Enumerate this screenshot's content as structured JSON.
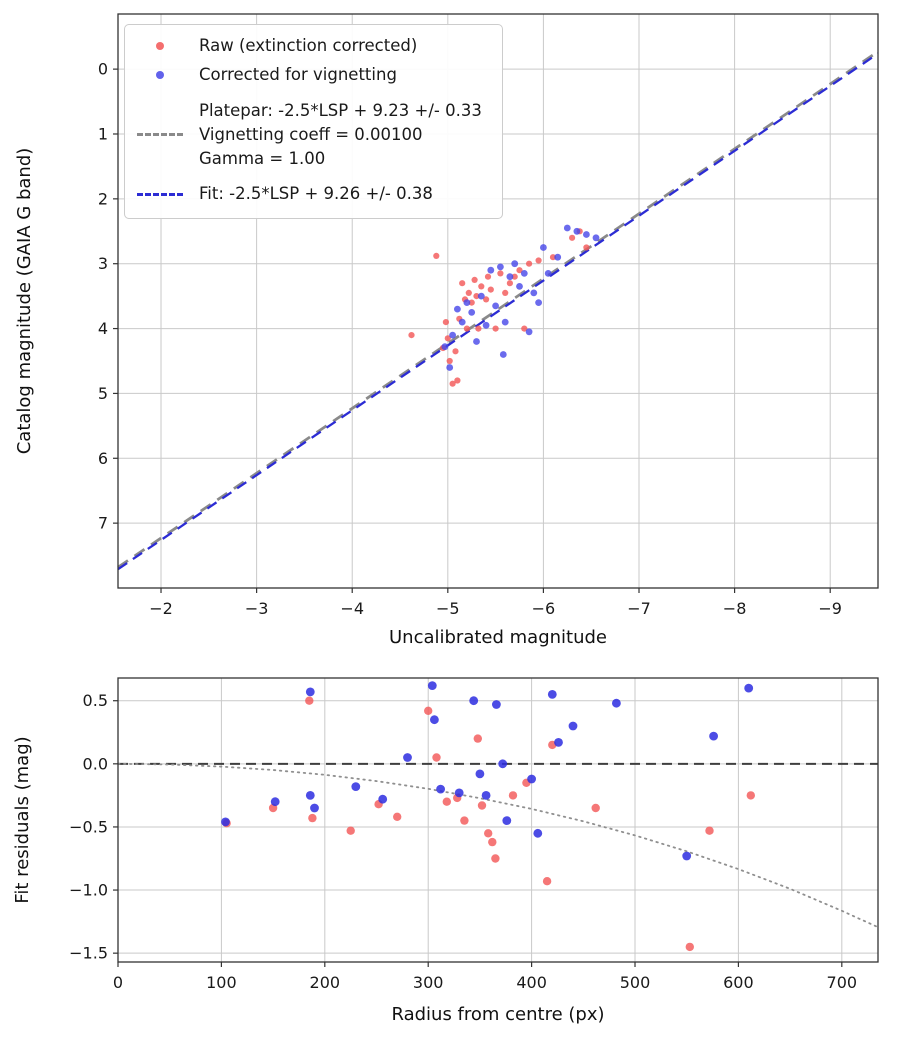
{
  "figure": {
    "background": "#ffffff"
  },
  "chart_data": [
    {
      "type": "scatter",
      "title": "",
      "xlabel": "Uncalibrated magnitude",
      "ylabel": "Catalog magnitude (GAIA G band)",
      "xlim": [
        -1.55,
        -9.5
      ],
      "ylim_top_bottom": [
        -0.85,
        8.0
      ],
      "grid": true,
      "colors": {
        "grid": "#c9c9c9",
        "spine": "#333333",
        "tick_text": "#1a1a1a"
      },
      "xticks": [
        {
          "v": -2,
          "label": "−2"
        },
        {
          "v": -3,
          "label": "−3"
        },
        {
          "v": -4,
          "label": "−4"
        },
        {
          "v": -5,
          "label": "−5"
        },
        {
          "v": -6,
          "label": "−6"
        },
        {
          "v": -7,
          "label": "−7"
        },
        {
          "v": -8,
          "label": "−8"
        },
        {
          "v": -9,
          "label": "−9"
        }
      ],
      "yticks": [
        {
          "v": 0,
          "label": "0"
        },
        {
          "v": 1,
          "label": "1"
        },
        {
          "v": 2,
          "label": "2"
        },
        {
          "v": 3,
          "label": "3"
        },
        {
          "v": 4,
          "label": "4"
        },
        {
          "v": 5,
          "label": "5"
        },
        {
          "v": 6,
          "label": "6"
        },
        {
          "v": 7,
          "label": "7"
        }
      ],
      "series": [
        {
          "name": "Raw (extinction corrected)",
          "color": "#f25555",
          "opacity": 0.8,
          "marker_px": 3.1,
          "points": [
            [
              -4.62,
              4.1
            ],
            [
              -4.88,
              2.88
            ],
            [
              -4.95,
              4.3
            ],
            [
              -4.98,
              3.9
            ],
            [
              -5.0,
              4.15
            ],
            [
              -5.02,
              4.5
            ],
            [
              -5.05,
              4.85
            ],
            [
              -5.08,
              4.35
            ],
            [
              -5.1,
              4.8
            ],
            [
              -5.12,
              3.85
            ],
            [
              -5.15,
              3.3
            ],
            [
              -5.18,
              3.55
            ],
            [
              -5.2,
              4.0
            ],
            [
              -5.22,
              3.45
            ],
            [
              -5.25,
              3.6
            ],
            [
              -5.28,
              3.25
            ],
            [
              -5.3,
              3.5
            ],
            [
              -5.32,
              4.0
            ],
            [
              -5.35,
              3.35
            ],
            [
              -5.4,
              3.55
            ],
            [
              -5.42,
              3.2
            ],
            [
              -5.45,
              3.4
            ],
            [
              -5.5,
              4.0
            ],
            [
              -5.55,
              3.15
            ],
            [
              -5.6,
              3.45
            ],
            [
              -5.65,
              3.3
            ],
            [
              -5.7,
              3.2
            ],
            [
              -5.75,
              3.1
            ],
            [
              -5.8,
              4.0
            ],
            [
              -5.85,
              3.0
            ],
            [
              -5.95,
              2.95
            ],
            [
              -6.1,
              2.9
            ],
            [
              -6.3,
              2.6
            ],
            [
              -6.38,
              2.5
            ],
            [
              -6.45,
              2.75
            ]
          ]
        },
        {
          "name": "Corrected for vignetting",
          "color": "#4646e8",
          "opacity": 0.8,
          "marker_px": 3.4,
          "points": [
            [
              -4.97,
              4.28
            ],
            [
              -5.02,
              4.6
            ],
            [
              -5.05,
              4.1
            ],
            [
              -5.1,
              3.7
            ],
            [
              -5.15,
              3.9
            ],
            [
              -5.2,
              3.6
            ],
            [
              -5.25,
              3.75
            ],
            [
              -5.3,
              4.2
            ],
            [
              -5.35,
              3.5
            ],
            [
              -5.4,
              3.95
            ],
            [
              -5.45,
              3.1
            ],
            [
              -5.5,
              3.65
            ],
            [
              -5.55,
              3.05
            ],
            [
              -5.58,
              4.4
            ],
            [
              -5.6,
              3.9
            ],
            [
              -5.65,
              3.2
            ],
            [
              -5.7,
              3.0
            ],
            [
              -5.75,
              3.35
            ],
            [
              -5.8,
              3.15
            ],
            [
              -5.85,
              4.05
            ],
            [
              -5.9,
              3.45
            ],
            [
              -5.95,
              3.6
            ],
            [
              -6.0,
              2.75
            ],
            [
              -6.05,
              3.15
            ],
            [
              -6.15,
              2.9
            ],
            [
              -6.25,
              2.45
            ],
            [
              -6.35,
              2.5
            ],
            [
              -6.45,
              2.55
            ],
            [
              -6.55,
              2.6
            ]
          ]
        }
      ],
      "fit_lines": [
        {
          "name": "platepar-line",
          "color": "#8a8a8a",
          "width": 2.8,
          "dash": "12,8",
          "slope": 1,
          "intercept": 9.23,
          "label_lines": [
            "Platepar: -2.5*LSP + 9.23 +/- 0.33",
            "Vignetting coeff = 0.00100",
            "Gamma = 1.00"
          ]
        },
        {
          "name": "fit-line",
          "color": "#2c2cd4",
          "width": 2.3,
          "dash": "11,7",
          "slope": 1,
          "intercept": 9.26,
          "label": "Fit: -2.5*LSP + 9.26 +/- 0.38"
        }
      ]
    },
    {
      "type": "scatter",
      "title": "",
      "xlabel": "Radius from centre (px)",
      "ylabel": "Fit residuals (mag)",
      "xlim": [
        0,
        735
      ],
      "ylim_top_bottom": [
        0.68,
        -1.57
      ],
      "grid": true,
      "colors": {
        "grid": "#c9c9c9",
        "spine": "#333333",
        "tick_text": "#1a1a1a"
      },
      "xticks": [
        {
          "v": 0,
          "label": "0"
        },
        {
          "v": 100,
          "label": "100"
        },
        {
          "v": 200,
          "label": "200"
        },
        {
          "v": 300,
          "label": "300"
        },
        {
          "v": 400,
          "label": "400"
        },
        {
          "v": 500,
          "label": "500"
        },
        {
          "v": 600,
          "label": "600"
        },
        {
          "v": 700,
          "label": "700"
        }
      ],
      "yticks": [
        {
          "v": 0.5,
          "label": "0.5"
        },
        {
          "v": 0.0,
          "label": "0.0"
        },
        {
          "v": -0.5,
          "label": "−0.5"
        },
        {
          "v": -1.0,
          "label": "−1.0"
        },
        {
          "v": -1.5,
          "label": "−1.5"
        }
      ],
      "zero_line": {
        "y": 0.0,
        "color": "#3f3f3f",
        "dash": "10,6",
        "width": 2
      },
      "model_curve": {
        "name": "vignetting-model-curve",
        "color": "#8f8f8f",
        "width": 1.8,
        "dash": "1.5,4.5",
        "points": [
          [
            0,
            0
          ],
          [
            50,
            -0.005
          ],
          [
            100,
            -0.022
          ],
          [
            150,
            -0.049
          ],
          [
            200,
            -0.087
          ],
          [
            250,
            -0.137
          ],
          [
            300,
            -0.198
          ],
          [
            350,
            -0.272
          ],
          [
            400,
            -0.357
          ],
          [
            450,
            -0.455
          ],
          [
            500,
            -0.567
          ],
          [
            550,
            -0.693
          ],
          [
            600,
            -0.834
          ],
          [
            650,
            -0.99
          ],
          [
            700,
            -1.164
          ],
          [
            735,
            -1.294
          ]
        ]
      },
      "series": [
        {
          "name": "raw-residuals",
          "color": "#f25555",
          "opacity": 0.8,
          "marker_px": 4.2,
          "points": [
            [
              105,
              -0.47
            ],
            [
              150,
              -0.35
            ],
            [
              185,
              0.5
            ],
            [
              188,
              -0.43
            ],
            [
              225,
              -0.53
            ],
            [
              252,
              -0.32
            ],
            [
              270,
              -0.42
            ],
            [
              300,
              0.42
            ],
            [
              308,
              0.05
            ],
            [
              318,
              -0.3
            ],
            [
              328,
              -0.27
            ],
            [
              335,
              -0.45
            ],
            [
              348,
              0.2
            ],
            [
              352,
              -0.33
            ],
            [
              358,
              -0.55
            ],
            [
              362,
              -0.62
            ],
            [
              365,
              -0.75
            ],
            [
              382,
              -0.25
            ],
            [
              395,
              -0.15
            ],
            [
              415,
              -0.93
            ],
            [
              420,
              0.15
            ],
            [
              462,
              -0.35
            ],
            [
              553,
              -1.45
            ],
            [
              572,
              -0.53
            ],
            [
              612,
              -0.25
            ]
          ]
        },
        {
          "name": "vignetting-corrected-residuals",
          "color": "#2d2de0",
          "opacity": 0.85,
          "marker_px": 4.4,
          "points": [
            [
              104,
              -0.46
            ],
            [
              152,
              -0.3
            ],
            [
              186,
              0.57
            ],
            [
              186,
              -0.25
            ],
            [
              190,
              -0.35
            ],
            [
              230,
              -0.18
            ],
            [
              256,
              -0.28
            ],
            [
              280,
              0.05
            ],
            [
              304,
              0.62
            ],
            [
              306,
              0.35
            ],
            [
              312,
              -0.2
            ],
            [
              330,
              -0.23
            ],
            [
              344,
              0.5
            ],
            [
              350,
              -0.08
            ],
            [
              356,
              -0.25
            ],
            [
              366,
              0.47
            ],
            [
              372,
              0.0
            ],
            [
              376,
              -0.45
            ],
            [
              400,
              -0.12
            ],
            [
              406,
              -0.55
            ],
            [
              420,
              0.55
            ],
            [
              426,
              0.17
            ],
            [
              440,
              0.3
            ],
            [
              482,
              0.48
            ],
            [
              550,
              -0.73
            ],
            [
              576,
              0.22
            ],
            [
              610,
              0.6
            ]
          ]
        }
      ]
    }
  ]
}
